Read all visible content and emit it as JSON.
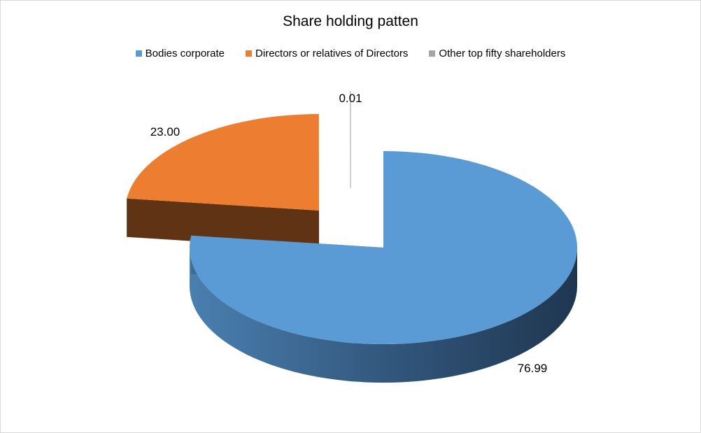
{
  "chart_data": {
    "type": "pie",
    "title": "Share holding patten",
    "legend_position": "top",
    "three_d": true,
    "categories": [
      "Bodies corporate",
      "Directors or relatives of Directors",
      "Other top fifty shareholders"
    ],
    "values": [
      76.99,
      23.0,
      0.01
    ],
    "value_labels": [
      "76.99",
      "23.00",
      "0.01"
    ],
    "colors": [
      "#5b9bd5",
      "#ed7d31",
      "#a5a5a5"
    ],
    "side_colors": [
      "#2e5a85",
      "#603314",
      "#7a7a7a"
    ],
    "exploded": true
  }
}
